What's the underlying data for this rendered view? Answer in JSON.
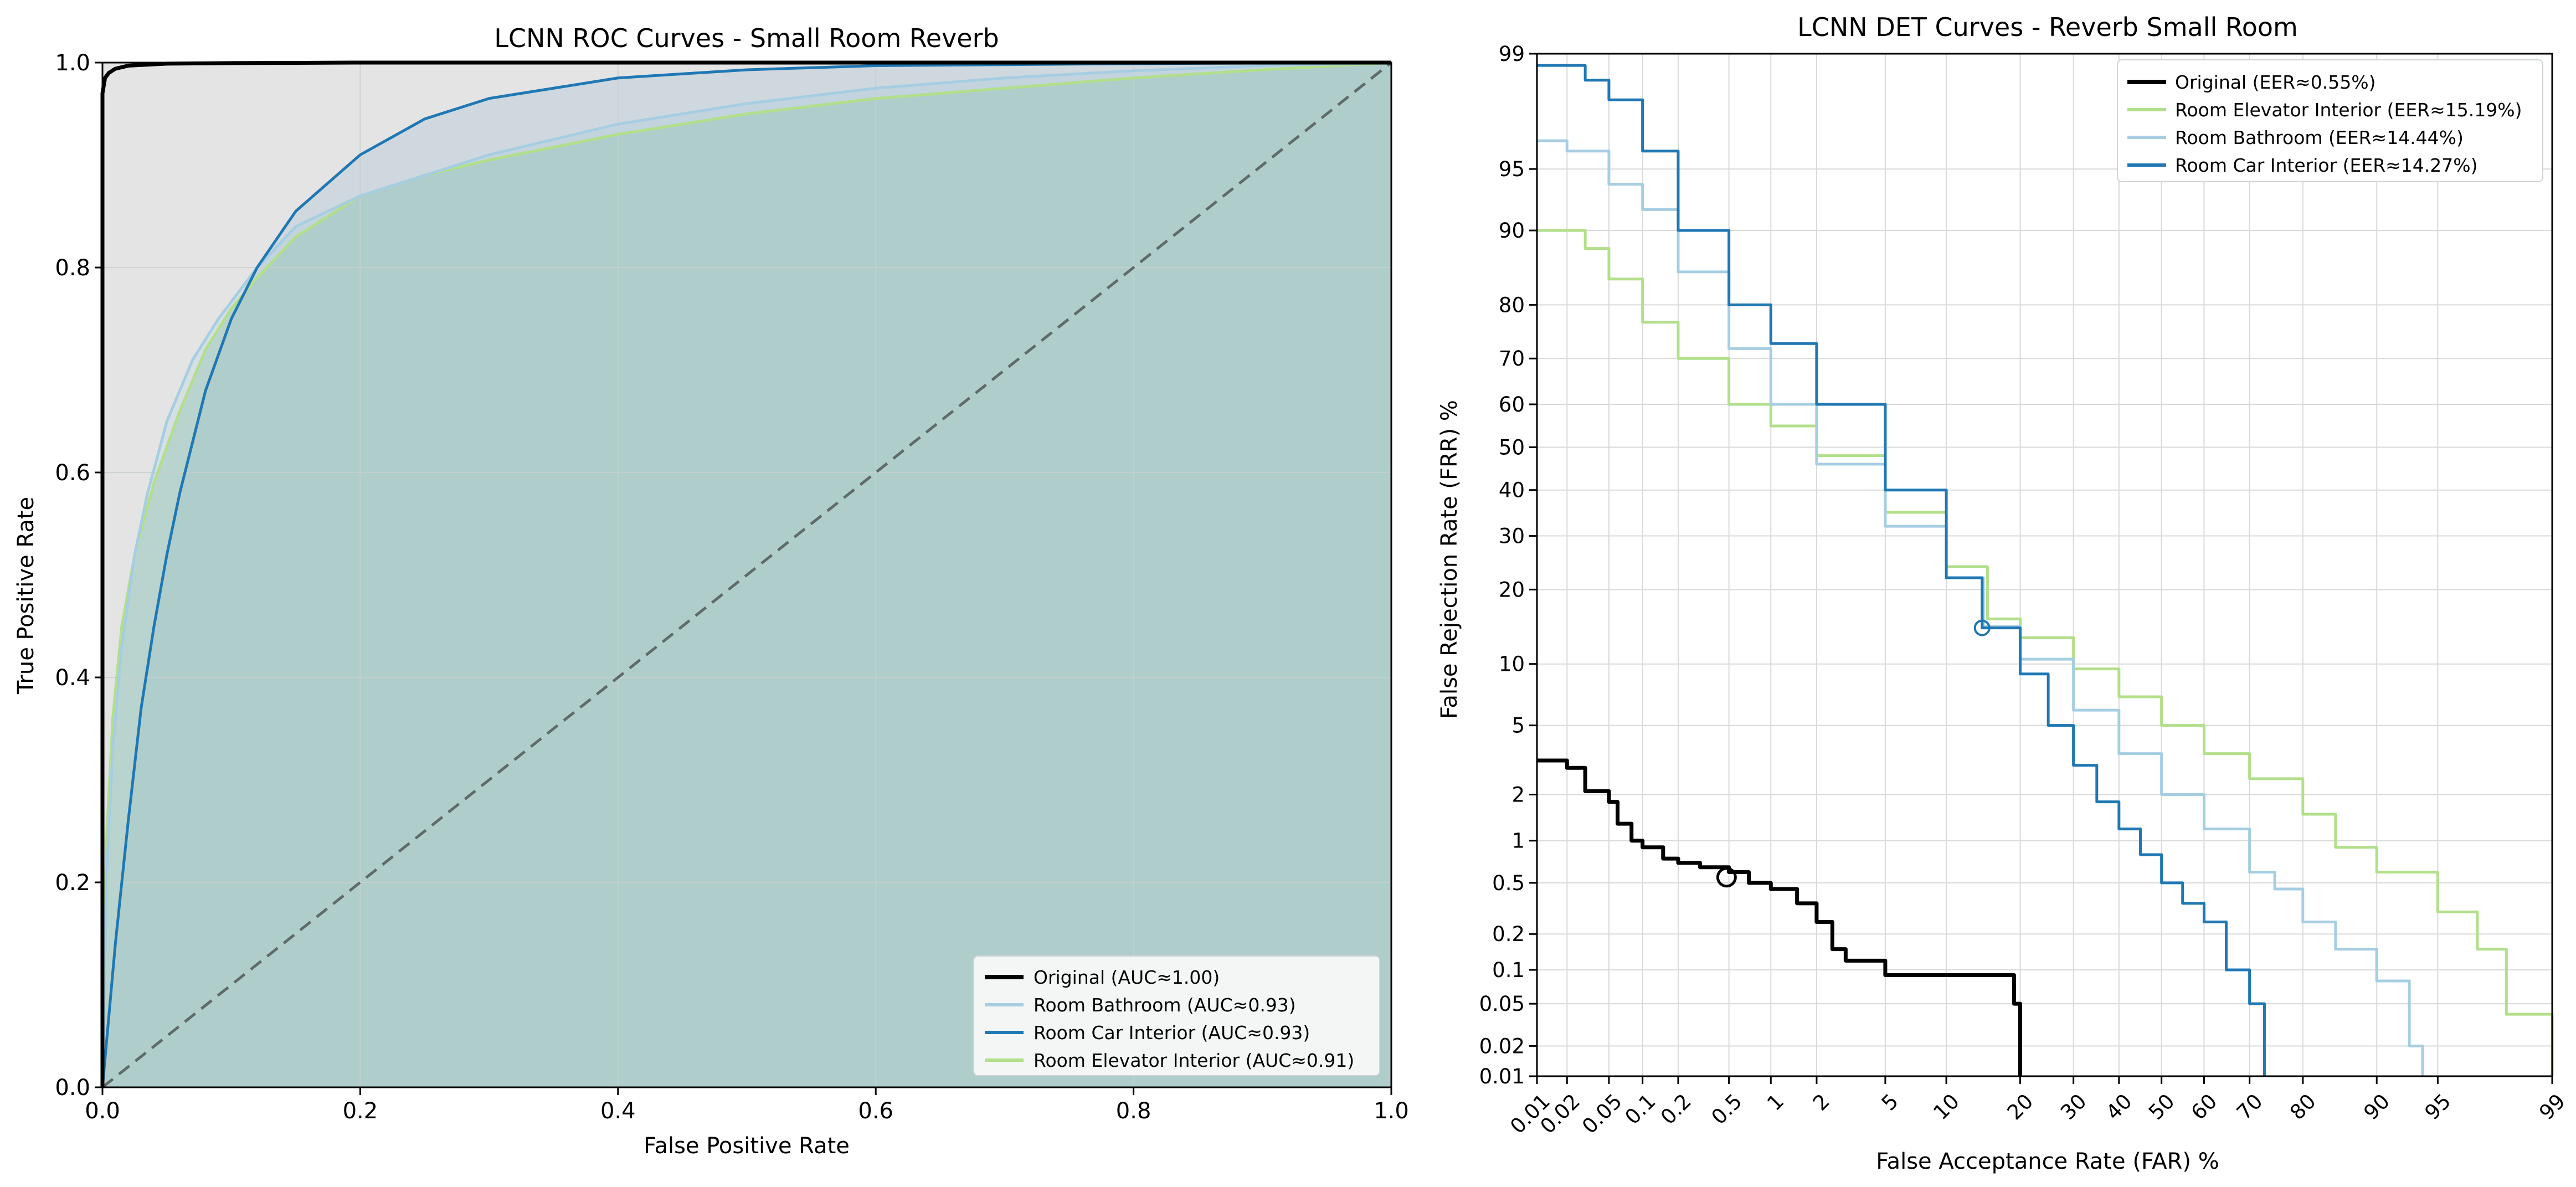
{
  "chart_data": [
    {
      "type": "line",
      "title": "LCNN ROC Curves - Small Room Reverb",
      "xlabel": "False Positive Rate",
      "ylabel": "True Positive Rate",
      "xlim": [
        0,
        1
      ],
      "ylim": [
        0,
        1
      ],
      "xticks": [
        "0.0",
        "0.2",
        "0.4",
        "0.6",
        "0.8",
        "1.0"
      ],
      "yticks": [
        "0.0",
        "0.2",
        "0.4",
        "0.6",
        "0.8",
        "1.0"
      ],
      "grid": true,
      "legend_position": "lower-right",
      "series": [
        {
          "name": "Original (AUC≈1.00)",
          "color": "#000000",
          "points": [
            [
              0,
              0
            ],
            [
              0,
              0.97
            ],
            [
              0.002,
              0.985
            ],
            [
              0.005,
              0.99
            ],
            [
              0.01,
              0.994
            ],
            [
              0.02,
              0.997
            ],
            [
              0.05,
              0.999
            ],
            [
              0.1,
              0.9995
            ],
            [
              0.2,
              1.0
            ],
            [
              1.0,
              1.0
            ]
          ]
        },
        {
          "name": "Room Bathroom (AUC≈0.93)",
          "color": "#a6cee3",
          "points": [
            [
              0,
              0
            ],
            [
              0.003,
              0.2
            ],
            [
              0.008,
              0.33
            ],
            [
              0.015,
              0.43
            ],
            [
              0.025,
              0.52
            ],
            [
              0.035,
              0.58
            ],
            [
              0.05,
              0.65
            ],
            [
              0.07,
              0.71
            ],
            [
              0.09,
              0.75
            ],
            [
              0.12,
              0.8
            ],
            [
              0.15,
              0.84
            ],
            [
              0.2,
              0.87
            ],
            [
              0.25,
              0.89
            ],
            [
              0.3,
              0.91
            ],
            [
              0.4,
              0.94
            ],
            [
              0.5,
              0.96
            ],
            [
              0.6,
              0.975
            ],
            [
              0.7,
              0.985
            ],
            [
              0.8,
              0.992
            ],
            [
              0.9,
              0.997
            ],
            [
              1.0,
              1.0
            ]
          ]
        },
        {
          "name": "Room Car Interior (AUC≈0.93)",
          "color": "#1f78b4",
          "points": [
            [
              0,
              0
            ],
            [
              0.005,
              0.07
            ],
            [
              0.01,
              0.14
            ],
            [
              0.02,
              0.26
            ],
            [
              0.03,
              0.37
            ],
            [
              0.04,
              0.45
            ],
            [
              0.05,
              0.52
            ],
            [
              0.06,
              0.58
            ],
            [
              0.07,
              0.63
            ],
            [
              0.08,
              0.68
            ],
            [
              0.1,
              0.75
            ],
            [
              0.12,
              0.8
            ],
            [
              0.15,
              0.855
            ],
            [
              0.2,
              0.91
            ],
            [
              0.25,
              0.945
            ],
            [
              0.3,
              0.965
            ],
            [
              0.4,
              0.985
            ],
            [
              0.5,
              0.993
            ],
            [
              0.6,
              0.997
            ],
            [
              0.8,
              0.999
            ],
            [
              1.0,
              1.0
            ]
          ]
        },
        {
          "name": "Room Elevator Interior (AUC≈0.91)",
          "color": "#b2df8a",
          "points": [
            [
              0,
              0
            ],
            [
              0.003,
              0.24
            ],
            [
              0.008,
              0.36
            ],
            [
              0.015,
              0.45
            ],
            [
              0.025,
              0.52
            ],
            [
              0.04,
              0.59
            ],
            [
              0.06,
              0.66
            ],
            [
              0.08,
              0.72
            ],
            [
              0.1,
              0.76
            ],
            [
              0.12,
              0.79
            ],
            [
              0.15,
              0.83
            ],
            [
              0.2,
              0.87
            ],
            [
              0.25,
              0.89
            ],
            [
              0.3,
              0.905
            ],
            [
              0.4,
              0.93
            ],
            [
              0.5,
              0.95
            ],
            [
              0.6,
              0.965
            ],
            [
              0.7,
              0.975
            ],
            [
              0.8,
              0.985
            ],
            [
              0.9,
              0.993
            ],
            [
              1.0,
              1.0
            ]
          ]
        }
      ],
      "reference_line": {
        "from": [
          0,
          0
        ],
        "to": [
          1,
          1
        ],
        "color": "#5f6b6b",
        "style": "dashed"
      }
    },
    {
      "type": "line",
      "title": "LCNN DET Curves - Reverb Small Room",
      "xlabel": "False Acceptance Rate (FAR) %",
      "ylabel": "False Rejection Rate (FRR) %",
      "scale": "probit",
      "xlim": [
        0.01,
        99
      ],
      "ylim": [
        0.01,
        99
      ],
      "xticks": [
        "0.01",
        "0.02",
        "0.05",
        "0.1",
        "0.2",
        "0.5",
        "1",
        "2",
        "5",
        "10",
        "20",
        "30",
        "40",
        "50",
        "60",
        "70",
        "80",
        "90",
        "95",
        "99"
      ],
      "yticks": [
        "0.01",
        "0.02",
        "0.05",
        "0.1",
        "0.2",
        "0.5",
        "1",
        "2",
        "5",
        "10",
        "20",
        "30",
        "40",
        "50",
        "60",
        "70",
        "80",
        "90",
        "95",
        "99"
      ],
      "grid": true,
      "legend_position": "upper-right",
      "series": [
        {
          "name": "Original (EER≈0.55%)",
          "color": "#000000",
          "eer": 0.55,
          "points": [
            [
              0.01,
              3.2
            ],
            [
              0.02,
              2.9
            ],
            [
              0.03,
              2.1
            ],
            [
              0.05,
              1.8
            ],
            [
              0.06,
              1.3
            ],
            [
              0.08,
              1.0
            ],
            [
              0.1,
              0.9
            ],
            [
              0.15,
              0.75
            ],
            [
              0.2,
              0.7
            ],
            [
              0.3,
              0.65
            ],
            [
              0.5,
              0.6
            ],
            [
              0.7,
              0.5
            ],
            [
              1,
              0.45
            ],
            [
              1.5,
              0.35
            ],
            [
              2,
              0.25
            ],
            [
              2.5,
              0.15
            ],
            [
              3,
              0.12
            ],
            [
              4,
              0.12
            ],
            [
              5,
              0.09
            ],
            [
              8,
              0.09
            ],
            [
              12,
              0.09
            ],
            [
              18,
              0.09
            ],
            [
              19,
              0.05
            ],
            [
              20,
              0.03
            ],
            [
              20,
              0.01
            ]
          ]
        },
        {
          "name": "Room Elevator Interior (EER≈15.19%)",
          "color": "#b2df8a",
          "eer": 15.19,
          "points": [
            [
              0.01,
              90
            ],
            [
              0.03,
              88
            ],
            [
              0.05,
              84
            ],
            [
              0.1,
              77
            ],
            [
              0.2,
              70
            ],
            [
              0.5,
              60
            ],
            [
              1,
              55
            ],
            [
              2,
              48
            ],
            [
              5,
              35
            ],
            [
              10,
              24
            ],
            [
              15,
              15.5
            ],
            [
              20,
              13
            ],
            [
              30,
              9.5
            ],
            [
              40,
              7
            ],
            [
              50,
              5
            ],
            [
              60,
              3.5
            ],
            [
              70,
              2.5
            ],
            [
              80,
              1.5
            ],
            [
              85,
              0.9
            ],
            [
              90,
              0.6
            ],
            [
              95,
              0.3
            ],
            [
              97,
              0.15
            ],
            [
              98,
              0.04
            ],
            [
              99,
              0.01
            ]
          ]
        },
        {
          "name": "Room Bathroom (EER≈14.44%)",
          "color": "#a6cee3",
          "eer": 14.44,
          "points": [
            [
              0.01,
              96.5
            ],
            [
              0.02,
              96
            ],
            [
              0.05,
              94
            ],
            [
              0.1,
              92
            ],
            [
              0.2,
              85
            ],
            [
              0.5,
              72
            ],
            [
              1,
              60
            ],
            [
              2,
              46
            ],
            [
              5,
              32
            ],
            [
              10,
              22
            ],
            [
              14.44,
              14.44
            ],
            [
              20,
              10.5
            ],
            [
              30,
              6
            ],
            [
              40,
              3.5
            ],
            [
              50,
              2
            ],
            [
              60,
              1.2
            ],
            [
              70,
              0.6
            ],
            [
              75,
              0.45
            ],
            [
              80,
              0.25
            ],
            [
              85,
              0.15
            ],
            [
              90,
              0.08
            ],
            [
              93,
              0.02
            ],
            [
              94,
              0.01
            ]
          ]
        },
        {
          "name": "Room Car Interior (EER≈14.27%)",
          "color": "#1f78b4",
          "eer": 14.27,
          "points": [
            [
              0.01,
              98.8
            ],
            [
              0.03,
              98.5
            ],
            [
              0.05,
              98
            ],
            [
              0.1,
              96
            ],
            [
              0.2,
              90
            ],
            [
              0.5,
              80
            ],
            [
              1,
              73
            ],
            [
              2,
              60
            ],
            [
              5,
              40
            ],
            [
              10,
              22
            ],
            [
              14.27,
              14.27
            ],
            [
              20,
              9
            ],
            [
              25,
              5
            ],
            [
              30,
              3
            ],
            [
              35,
              1.8
            ],
            [
              40,
              1.2
            ],
            [
              45,
              0.8
            ],
            [
              50,
              0.5
            ],
            [
              55,
              0.35
            ],
            [
              60,
              0.25
            ],
            [
              65,
              0.1
            ],
            [
              70,
              0.05
            ],
            [
              73,
              0.01
            ]
          ]
        }
      ]
    }
  ]
}
